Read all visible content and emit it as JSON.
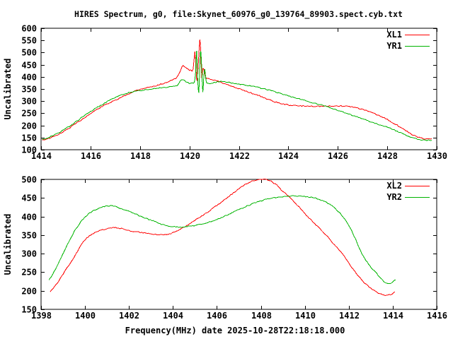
{
  "title": "HIRES Spectrum, g0, file:Skynet_60976_g0_139764_89903.spect.cyb.txt",
  "xlabel": "Frequency(MHz) date 2025-10-28T22:18:18.000",
  "colors": {
    "red": "#ff0000",
    "green": "#00b400",
    "axis": "#000000",
    "background": "#ffffff"
  },
  "chart_data": [
    {
      "type": "line",
      "ylabel": "Uncalibrated",
      "xlim": [
        1414,
        1430
      ],
      "ylim": [
        100,
        600
      ],
      "xticks": [
        1414,
        1416,
        1418,
        1420,
        1422,
        1424,
        1426,
        1428,
        1430
      ],
      "yticks": [
        100,
        150,
        200,
        250,
        300,
        350,
        400,
        450,
        500,
        550,
        600
      ],
      "legend_position": "top-right",
      "series": [
        {
          "name": "XL1",
          "color": "#ff0000",
          "points": [
            [
              1414.05,
              141
            ],
            [
              1414.3,
              146
            ],
            [
              1414.6,
              158
            ],
            [
              1415.0,
              180
            ],
            [
              1415.4,
              207
            ],
            [
              1415.8,
              235
            ],
            [
              1416.2,
              262
            ],
            [
              1416.6,
              285
            ],
            [
              1417.0,
              303
            ],
            [
              1417.4,
              323
            ],
            [
              1417.8,
              342
            ],
            [
              1418.2,
              354
            ],
            [
              1418.6,
              362
            ],
            [
              1419.0,
              375
            ],
            [
              1419.3,
              387
            ],
            [
              1419.5,
              398
            ],
            [
              1419.65,
              428
            ],
            [
              1419.75,
              446
            ],
            [
              1419.9,
              434
            ],
            [
              1420.05,
              427
            ],
            [
              1420.15,
              432
            ],
            [
              1420.22,
              505
            ],
            [
              1420.27,
              430
            ],
            [
              1420.31,
              382
            ],
            [
              1420.37,
              470
            ],
            [
              1420.42,
              553
            ],
            [
              1420.46,
              498
            ],
            [
              1420.5,
              395
            ],
            [
              1420.55,
              434
            ],
            [
              1420.6,
              424
            ],
            [
              1420.66,
              398
            ],
            [
              1420.75,
              392
            ],
            [
              1420.9,
              388
            ],
            [
              1421.1,
              384
            ],
            [
              1421.4,
              372
            ],
            [
              1421.8,
              357
            ],
            [
              1422.2,
              344
            ],
            [
              1422.6,
              330
            ],
            [
              1423.0,
              315
            ],
            [
              1423.4,
              299
            ],
            [
              1423.8,
              288
            ],
            [
              1424.2,
              282
            ],
            [
              1424.6,
              280
            ],
            [
              1425.0,
              279
            ],
            [
              1425.5,
              279
            ],
            [
              1426.0,
              280
            ],
            [
              1426.4,
              279
            ],
            [
              1426.8,
              272
            ],
            [
              1427.2,
              259
            ],
            [
              1427.6,
              243
            ],
            [
              1428.0,
              224
            ],
            [
              1428.4,
              201
            ],
            [
              1428.8,
              175
            ],
            [
              1429.1,
              158
            ],
            [
              1429.4,
              147
            ],
            [
              1429.6,
              144
            ],
            [
              1429.8,
              145
            ]
          ]
        },
        {
          "name": "YR1",
          "color": "#00b400",
          "points": [
            [
              1414.05,
              143
            ],
            [
              1414.4,
              154
            ],
            [
              1414.8,
              175
            ],
            [
              1415.2,
              200
            ],
            [
              1415.6,
              229
            ],
            [
              1416.0,
              257
            ],
            [
              1416.4,
              282
            ],
            [
              1416.8,
              305
            ],
            [
              1417.2,
              323
            ],
            [
              1417.6,
              336
            ],
            [
              1418.0,
              344
            ],
            [
              1418.4,
              349
            ],
            [
              1418.8,
              354
            ],
            [
              1419.2,
              358
            ],
            [
              1419.5,
              364
            ],
            [
              1419.7,
              390
            ],
            [
              1419.85,
              381
            ],
            [
              1420.0,
              374
            ],
            [
              1420.1,
              375
            ],
            [
              1420.2,
              378
            ],
            [
              1420.25,
              420
            ],
            [
              1420.29,
              508
            ],
            [
              1420.33,
              400
            ],
            [
              1420.38,
              336
            ],
            [
              1420.43,
              470
            ],
            [
              1420.46,
              505
            ],
            [
              1420.5,
              430
            ],
            [
              1420.54,
              338
            ],
            [
              1420.58,
              400
            ],
            [
              1420.62,
              433
            ],
            [
              1420.67,
              385
            ],
            [
              1420.75,
              373
            ],
            [
              1421.0,
              377
            ],
            [
              1421.2,
              380
            ],
            [
              1421.5,
              378
            ],
            [
              1422.0,
              370
            ],
            [
              1422.5,
              362
            ],
            [
              1423.0,
              351
            ],
            [
              1423.5,
              337
            ],
            [
              1424.0,
              322
            ],
            [
              1424.5,
              307
            ],
            [
              1425.0,
              293
            ],
            [
              1425.5,
              280
            ],
            [
              1426.0,
              262
            ],
            [
              1426.5,
              245
            ],
            [
              1427.0,
              228
            ],
            [
              1427.5,
              209
            ],
            [
              1428.0,
              193
            ],
            [
              1428.4,
              176
            ],
            [
              1428.8,
              158
            ],
            [
              1429.1,
              147
            ],
            [
              1429.4,
              141
            ],
            [
              1429.6,
              139
            ],
            [
              1429.8,
              140
            ]
          ]
        }
      ]
    },
    {
      "type": "line",
      "ylabel": "Uncalibrated",
      "xlim": [
        1398,
        1416
      ],
      "ylim": [
        150,
        500
      ],
      "xticks": [
        1398,
        1400,
        1402,
        1404,
        1406,
        1408,
        1410,
        1412,
        1414,
        1416
      ],
      "yticks": [
        150,
        200,
        250,
        300,
        350,
        400,
        450,
        500
      ],
      "legend_position": "top-right",
      "series": [
        {
          "name": "XL2",
          "color": "#ff0000",
          "points": [
            [
              1398.42,
              197
            ],
            [
              1398.7,
              218
            ],
            [
              1399.0,
              245
            ],
            [
              1399.3,
              272
            ],
            [
              1399.6,
              300
            ],
            [
              1399.9,
              330
            ],
            [
              1400.2,
              348
            ],
            [
              1400.5,
              358
            ],
            [
              1400.8,
              364
            ],
            [
              1401.1,
              368
            ],
            [
              1401.4,
              370
            ],
            [
              1401.8,
              366
            ],
            [
              1402.2,
              360
            ],
            [
              1402.7,
              356
            ],
            [
              1403.2,
              352
            ],
            [
              1403.7,
              352
            ],
            [
              1404.1,
              358
            ],
            [
              1404.5,
              371
            ],
            [
              1405.0,
              390
            ],
            [
              1405.5,
              409
            ],
            [
              1406.0,
              430
            ],
            [
              1406.5,
              452
            ],
            [
              1407.0,
              475
            ],
            [
              1407.4,
              490
            ],
            [
              1407.8,
              499
            ],
            [
              1408.2,
              500
            ],
            [
              1408.6,
              490
            ],
            [
              1409.0,
              468
            ],
            [
              1409.5,
              441
            ],
            [
              1410.0,
              408
            ],
            [
              1410.5,
              378
            ],
            [
              1411.0,
              348
            ],
            [
              1411.4,
              320
            ],
            [
              1411.8,
              292
            ],
            [
              1412.2,
              258
            ],
            [
              1412.6,
              228
            ],
            [
              1413.0,
              207
            ],
            [
              1413.35,
              194
            ],
            [
              1413.65,
              188
            ],
            [
              1413.9,
              190
            ],
            [
              1414.1,
              197
            ]
          ]
        },
        {
          "name": "YR2",
          "color": "#00b400",
          "points": [
            [
              1398.36,
              228
            ],
            [
              1398.6,
              252
            ],
            [
              1398.9,
              288
            ],
            [
              1399.2,
              325
            ],
            [
              1399.5,
              358
            ],
            [
              1399.8,
              385
            ],
            [
              1400.1,
              404
            ],
            [
              1400.4,
              416
            ],
            [
              1400.7,
              424
            ],
            [
              1401.0,
              428
            ],
            [
              1401.3,
              428
            ],
            [
              1401.7,
              420
            ],
            [
              1402.1,
              411
            ],
            [
              1402.6,
              399
            ],
            [
              1403.1,
              388
            ],
            [
              1403.6,
              377
            ],
            [
              1404.0,
              373
            ],
            [
              1404.4,
              372
            ],
            [
              1404.9,
              375
            ],
            [
              1405.4,
              381
            ],
            [
              1406.0,
              392
            ],
            [
              1406.5,
              405
            ],
            [
              1407.0,
              419
            ],
            [
              1407.7,
              436
            ],
            [
              1408.3,
              447
            ],
            [
              1409.0,
              453
            ],
            [
              1409.7,
              455
            ],
            [
              1410.3,
              452
            ],
            [
              1410.8,
              443
            ],
            [
              1411.3,
              426
            ],
            [
              1411.65,
              405
            ],
            [
              1412.0,
              376
            ],
            [
              1412.3,
              340
            ],
            [
              1412.6,
              299
            ],
            [
              1412.9,
              272
            ],
            [
              1413.2,
              251
            ],
            [
              1413.45,
              235
            ],
            [
              1413.65,
              222
            ],
            [
              1413.85,
              219
            ],
            [
              1414.13,
              230
            ]
          ]
        }
      ]
    }
  ]
}
